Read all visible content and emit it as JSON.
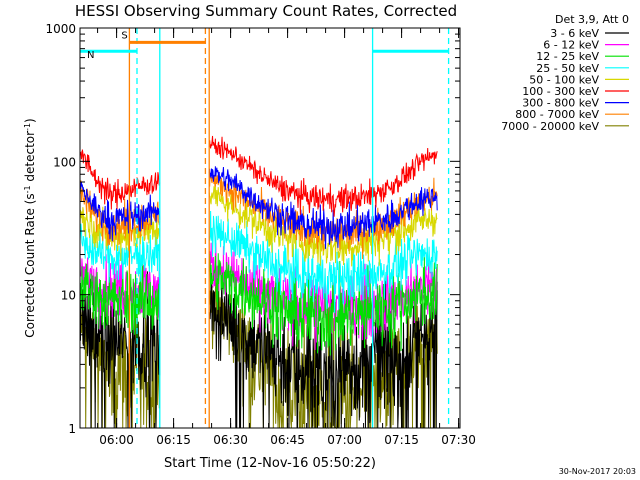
{
  "chart_data": {
    "type": "line",
    "title": "HESSI Observing Summary Count Rates, Corrected",
    "xlabel": "Start Time (12-Nov-16 05:50:22)",
    "ylabel_prefix": "Corrected Count Rate (s",
    "ylabel_sup1": "-1",
    "ylabel_mid": " detector",
    "ylabel_sup2": "-1",
    "ylabel_suffix": ")",
    "x_unit": "minutes since 05:50:22",
    "xlim": [
      0,
      100
    ],
    "x_ticks": [
      {
        "value": 9.63,
        "label": "06:00"
      },
      {
        "value": 24.63,
        "label": "06:15"
      },
      {
        "value": 39.63,
        "label": "06:30"
      },
      {
        "value": 54.63,
        "label": "06:45"
      },
      {
        "value": 69.63,
        "label": "07:00"
      },
      {
        "value": 84.63,
        "label": "07:15"
      },
      {
        "value": 99.63,
        "label": "07:30"
      }
    ],
    "y_scale": "log",
    "ylim": [
      1,
      1000
    ],
    "y_ticks": [
      {
        "value": 1,
        "label": "1"
      },
      {
        "value": 10,
        "label": "10"
      },
      {
        "value": 100,
        "label": "100"
      },
      {
        "value": 1000,
        "label": "1000"
      }
    ],
    "legend_placement": "right, outside plot",
    "legend_header": "Det 3,9, Att 0",
    "series": [
      {
        "name": "3 - 6 keV",
        "color": "#000000",
        "x": [
          0,
          4,
          8,
          12,
          16,
          20,
          34,
          40,
          46,
          52,
          58,
          64,
          70,
          76,
          82,
          86,
          90,
          94
        ],
        "values": [
          7,
          5,
          4.5,
          4.5,
          4.5,
          4.5,
          8,
          6,
          4.5,
          3.5,
          3,
          2.8,
          3,
          3,
          3.5,
          4,
          5,
          6
        ]
      },
      {
        "name": "6 - 12 keV",
        "color": "#ff00ff",
        "x": [
          0,
          4,
          8,
          12,
          16,
          20,
          34,
          40,
          46,
          52,
          58,
          64,
          70,
          76,
          82,
          86,
          90,
          94
        ],
        "values": [
          15,
          12,
          11,
          11,
          11,
          11,
          17,
          14,
          11,
          9,
          8,
          8,
          8,
          8.5,
          9,
          10,
          11,
          11
        ]
      },
      {
        "name": "12 - 25 keV",
        "color": "#00e000",
        "x": [
          0,
          4,
          8,
          12,
          16,
          20,
          34,
          40,
          46,
          52,
          58,
          64,
          70,
          76,
          82,
          86,
          90,
          94
        ],
        "values": [
          12,
          10,
          9,
          9,
          9,
          9,
          14,
          12,
          10,
          8,
          7,
          7,
          7,
          7.5,
          8,
          9,
          10,
          10
        ]
      },
      {
        "name": "25 - 50 keV",
        "color": "#00ffff",
        "x": [
          0,
          4,
          8,
          12,
          16,
          20,
          34,
          40,
          46,
          52,
          58,
          64,
          70,
          76,
          82,
          86,
          90,
          94
        ],
        "values": [
          26,
          21,
          19,
          19,
          20,
          20,
          30,
          26,
          20,
          16,
          14,
          13,
          13,
          14,
          16,
          18,
          20,
          20
        ]
      },
      {
        "name": "50 - 100 keV",
        "color": "#d8d800",
        "x": [
          0,
          4,
          8,
          12,
          16,
          20,
          34,
          40,
          46,
          52,
          58,
          64,
          70,
          76,
          82,
          86,
          90,
          94
        ],
        "values": [
          40,
          32,
          28,
          28,
          30,
          30,
          58,
          46,
          36,
          28,
          25,
          23,
          23,
          25,
          28,
          32,
          36,
          38
        ]
      },
      {
        "name": "100 - 300 keV",
        "color": "#ff0000",
        "x": [
          0,
          4,
          8,
          12,
          16,
          20,
          34,
          40,
          46,
          52,
          58,
          64,
          70,
          76,
          82,
          86,
          90,
          94
        ],
        "values": [
          120,
          75,
          55,
          60,
          65,
          70,
          135,
          115,
          85,
          65,
          55,
          52,
          52,
          55,
          65,
          80,
          100,
          115
        ]
      },
      {
        "name": "300 - 800 keV",
        "color": "#0000ff",
        "x": [
          0,
          4,
          8,
          12,
          16,
          20,
          34,
          40,
          46,
          52,
          58,
          64,
          70,
          76,
          82,
          86,
          90,
          94
        ],
        "values": [
          65,
          45,
          36,
          38,
          40,
          42,
          85,
          70,
          52,
          40,
          34,
          32,
          32,
          34,
          38,
          45,
          52,
          55
        ]
      },
      {
        "name": "800 - 7000 keV",
        "color": "#ff8000",
        "x": [
          0,
          4,
          8,
          12,
          16,
          20,
          34,
          40,
          46,
          52,
          58,
          64,
          70,
          76,
          82,
          86,
          90,
          94
        ],
        "values": [
          58,
          40,
          32,
          34,
          36,
          38,
          75,
          60,
          46,
          36,
          31,
          29,
          29,
          31,
          36,
          42,
          50,
          55
        ]
      },
      {
        "name": "7000 - 20000 keV",
        "color": "#808000",
        "x": [
          0,
          4,
          8,
          12,
          16,
          20,
          34,
          40,
          46,
          52,
          58,
          64,
          70,
          76,
          82,
          86,
          90,
          94
        ],
        "values": [
          6,
          4,
          3,
          3,
          2.5,
          2.5,
          9,
          6,
          3.5,
          2,
          2,
          1.6,
          1.6,
          1.8,
          2.2,
          3,
          4.5,
          5.5
        ]
      }
    ],
    "gaps": [
      [
        21,
        34
      ]
    ],
    "vertical_lines": [
      {
        "x": 13,
        "color": "#ff8000",
        "style": "solid"
      },
      {
        "x": 15,
        "color": "#00ffff",
        "style": "dashed"
      },
      {
        "x": 21,
        "color": "#00ffff",
        "style": "solid"
      },
      {
        "x": 33,
        "color": "#ff8000",
        "style": "dashed"
      },
      {
        "x": 34,
        "color": "#ff8000",
        "style": "solid"
      },
      {
        "x": 77,
        "color": "#00ffff",
        "style": "solid"
      },
      {
        "x": 97,
        "color": "#00ffff",
        "style": "dashed"
      }
    ],
    "bars": [
      {
        "label": "S",
        "color": "#ff8000",
        "x_start": 13,
        "x_end": 33,
        "y": 780
      },
      {
        "label": "N",
        "color": "#00ffff",
        "x_start": 0,
        "x_end": 15,
        "y": 670
      },
      {
        "label": "",
        "color": "#00ffff",
        "x_start": 77,
        "x_end": 97,
        "y": 670
      }
    ],
    "footer_date": "30-Nov-2017 20:03"
  }
}
